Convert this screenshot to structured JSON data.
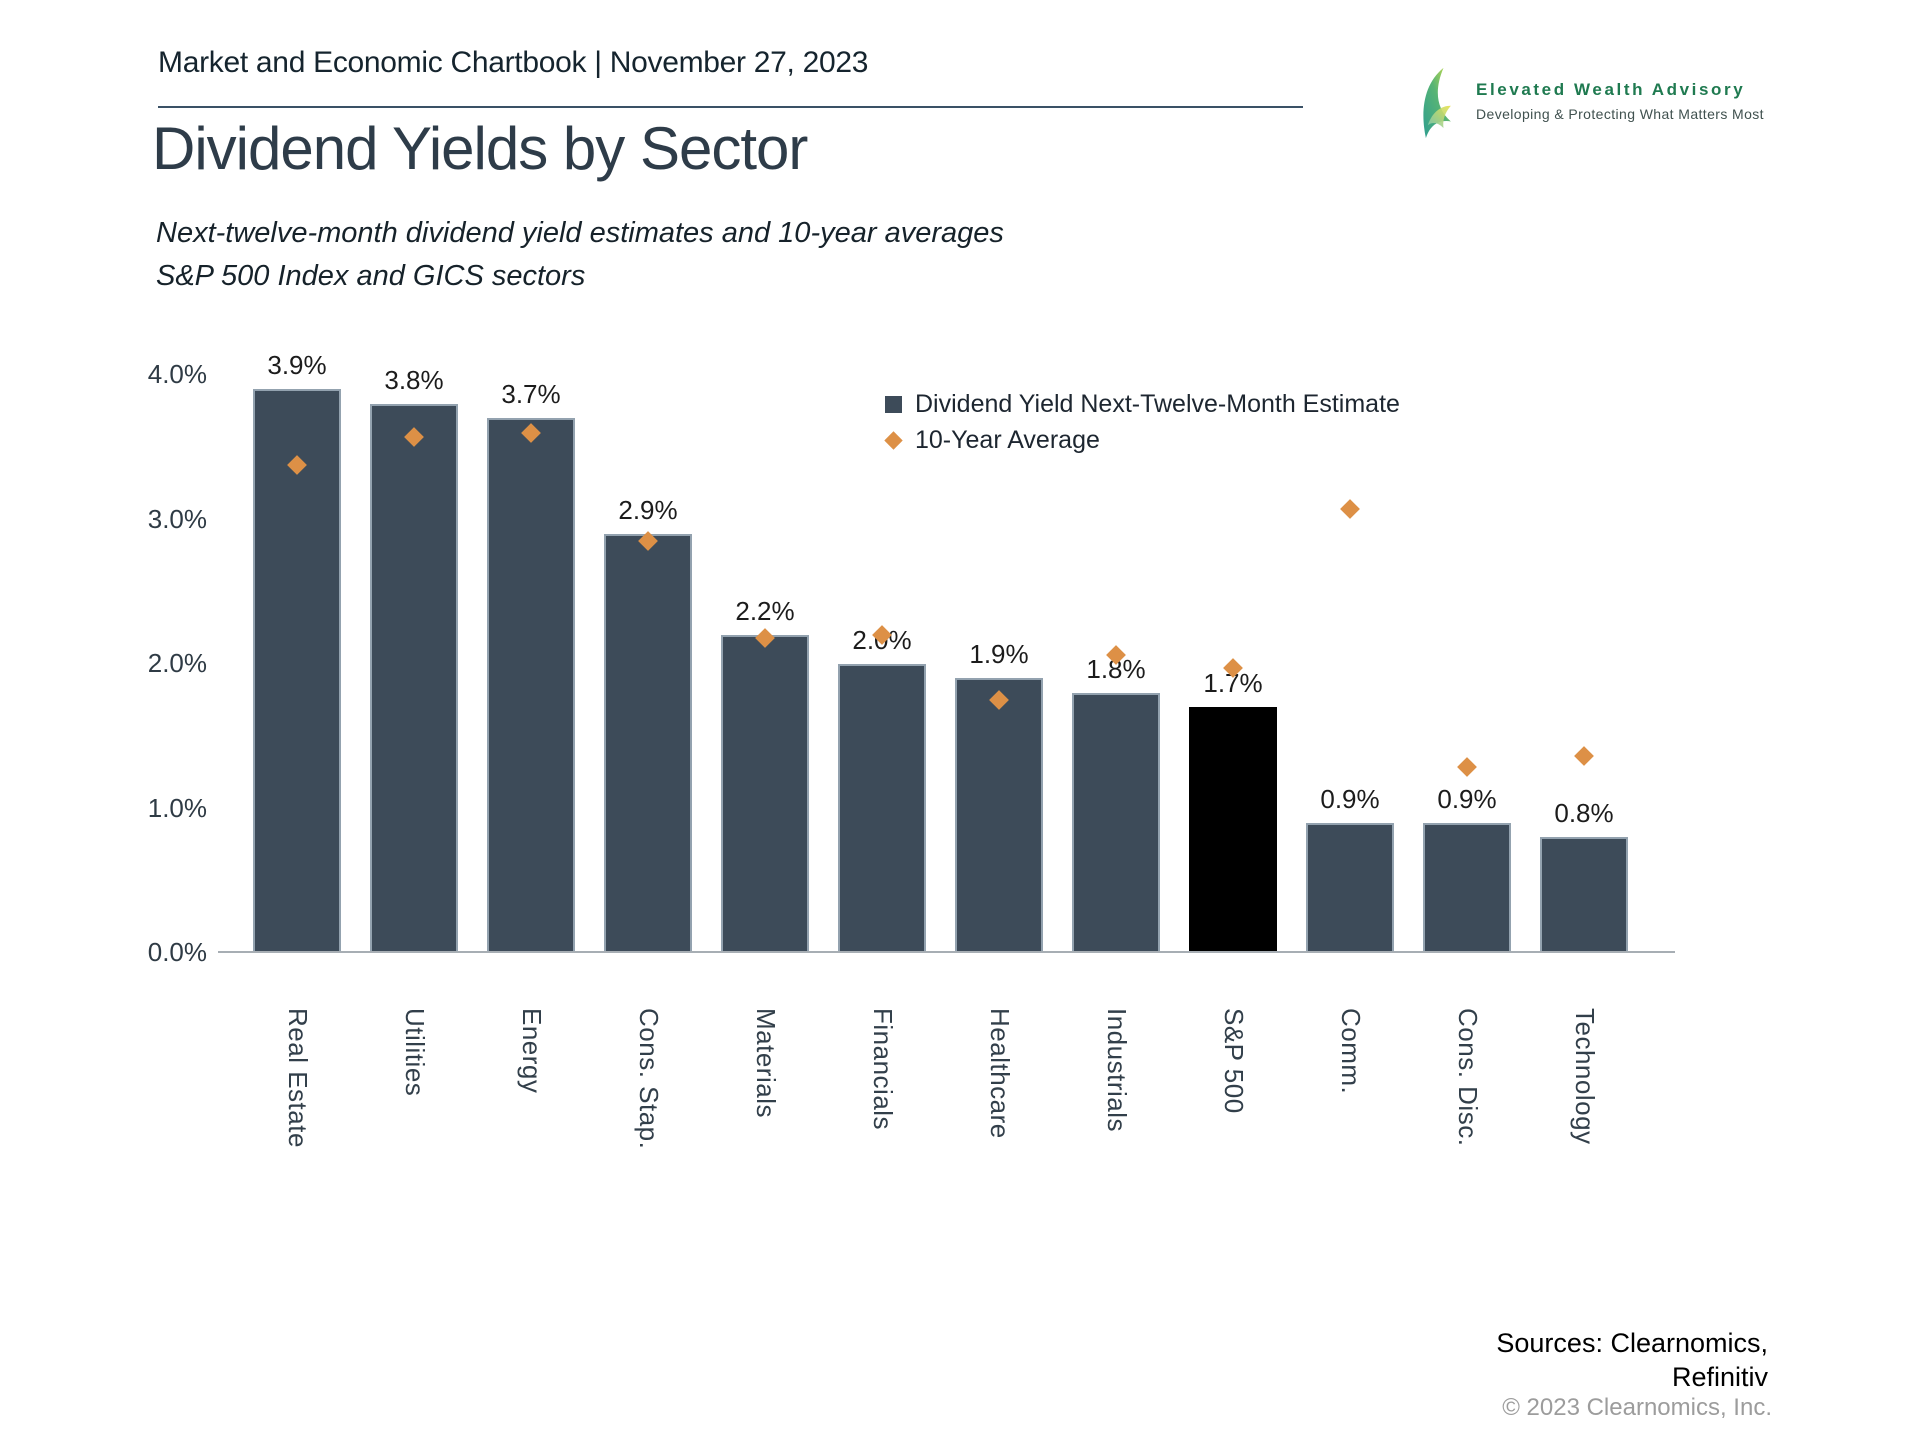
{
  "header": {
    "chartbook_title": "Market and Economic Chartbook | November 27, 2023"
  },
  "logo": {
    "brand": "Elevated Wealth Advisory",
    "tagline": "Developing & Protecting What Matters Most"
  },
  "title": "Dividend Yields by Sector",
  "subtitle": {
    "line1": "Next-twelve-month dividend yield estimates and 10-year averages",
    "line2": "S&P 500 Index and GICS sectors"
  },
  "legend": {
    "bar_series": "Dividend Yield Next-Twelve-Month Estimate",
    "avg_series": "10-Year Average"
  },
  "footer": {
    "sources_line1": "Sources: Clearnomics,",
    "sources_line2": "Refinitiv",
    "copyright": "© 2023 Clearnomics, Inc."
  },
  "colors": {
    "bar": "#3D4B59",
    "bar_highlight": "#000000",
    "diamond": "#DD9046",
    "axis_line": "#A7AEB4",
    "accent_green": "#1F7A50"
  },
  "chart_data": {
    "type": "bar",
    "title": "Dividend Yields by Sector",
    "subtitle": "Next-twelve-month dividend yield estimates and 10-year averages, S&P 500 Index and GICS sectors",
    "categories": [
      "Real Estate",
      "Utilities",
      "Energy",
      "Cons. Stap.",
      "Materials",
      "Financials",
      "Healthcare",
      "Industrials",
      "S&P 500",
      "Comm.",
      "Cons. Disc.",
      "Technology"
    ],
    "series": [
      {
        "name": "Dividend Yield Next-Twelve-Month Estimate",
        "type": "bar",
        "values": [
          3.9,
          3.8,
          3.7,
          2.9,
          2.2,
          2.0,
          1.9,
          1.8,
          1.7,
          0.9,
          0.9,
          0.8
        ],
        "value_labels": [
          "3.9%",
          "3.8%",
          "3.7%",
          "2.9%",
          "2.2%",
          "2.0%",
          "1.9%",
          "1.8%",
          "1.7%",
          "0.9%",
          "0.9%",
          "0.8%"
        ]
      },
      {
        "name": "10-Year Average",
        "type": "scatter",
        "marker": "diamond",
        "values": [
          3.38,
          3.57,
          3.6,
          2.85,
          2.18,
          2.2,
          1.75,
          2.06,
          1.97,
          3.07,
          1.29,
          1.36
        ]
      }
    ],
    "highlight_category": "S&P 500",
    "xlabel": "",
    "ylabel": "",
    "ylim": [
      0,
      4.0
    ],
    "ytick_labels": [
      "0.0%",
      "1.0%",
      "2.0%",
      "3.0%",
      "4.0%"
    ],
    "grid": false,
    "legend_position": "top-right"
  }
}
